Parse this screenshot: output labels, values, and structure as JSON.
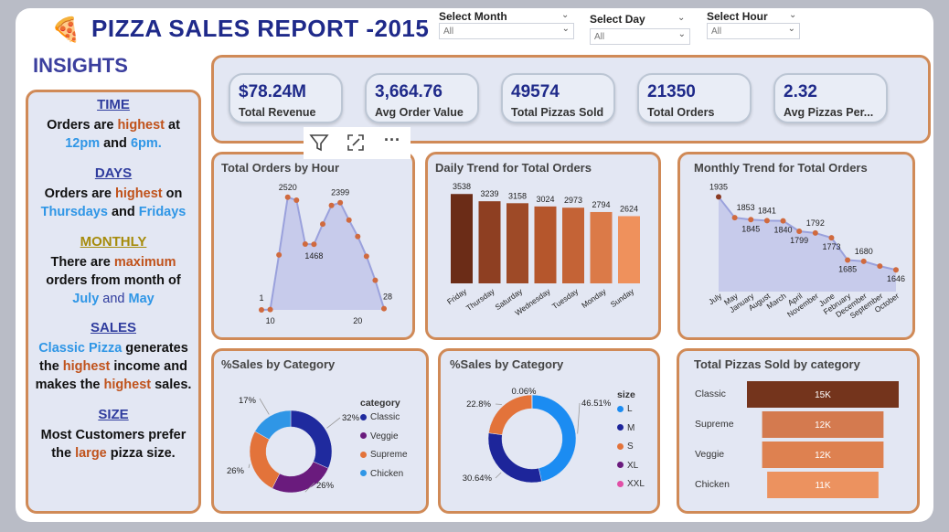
{
  "header": {
    "title": "PIZZA SALES REPORT -2015",
    "insights_title": "INSIGHTS"
  },
  "slicers": [
    {
      "label": "Select Month",
      "value": "All"
    },
    {
      "label": "Select Day",
      "value": "All"
    },
    {
      "label": "Select Hour",
      "value": "All"
    }
  ],
  "insights": {
    "time": {
      "heading": "TIME",
      "l1a": "Orders are ",
      "l1b": "highest",
      "l1c": " at",
      "l2a": "12pm",
      "l2b": " and ",
      "l2c": "6pm."
    },
    "days": {
      "heading": "DAYS ",
      "l1a": "Orders are ",
      "l1b": "highest",
      "l1c": " on",
      "l2a": "Thursdays",
      "l2b": " and ",
      "l2c": "Fridays"
    },
    "monthly": {
      "heading": "MONTHLY",
      "l1a": "There are ",
      "l1b": "maximum",
      "l2": "orders from month of",
      "l3a": "July",
      "l3b": " and ",
      "l3c": "May"
    },
    "sales": {
      "heading": "SALES",
      "l1a": "Classic Pizza",
      "l1b": " generates",
      "l2a": "the ",
      "l2b": "highest",
      "l2c": " income and",
      "l3a": "makes the ",
      "l3b": "highest",
      "l3c": " sales."
    },
    "size": {
      "heading": "SIZE",
      "l1": "Most Customers prefer",
      "l2a": "the ",
      "l2b": "large",
      "l2c": " pizza size."
    }
  },
  "kpis": [
    {
      "value": "$78.24M",
      "label": "Total Revenue"
    },
    {
      "value": "3,664.76",
      "label": "Avg Order Value"
    },
    {
      "value": "49574",
      "label": "Total Pizzas Sold"
    },
    {
      "value": "21350",
      "label": "Total Orders"
    },
    {
      "value": "2.32",
      "label": "Avg Pizzas Per..."
    }
  ],
  "chart_titles": {
    "hour": "Total Orders by Hour",
    "daily": "Daily Trend for Total Orders",
    "monthly": "Monthly Trend for Total Orders",
    "category": "%Sales by Category",
    "size": "%Sales by Category",
    "pizzas": "Total Pizzas Sold by category"
  },
  "legend_titles": {
    "category": "category",
    "size": "size"
  },
  "colors": {
    "accent": "#1f2a8a",
    "panel_border": "#d08a57",
    "panel_bg": "#e3e7f3"
  },
  "chart_data": [
    {
      "type": "area",
      "title": "Total Orders by Hour",
      "x": [
        9,
        10,
        11,
        12,
        13,
        14,
        15,
        16,
        17,
        18,
        19,
        20,
        21,
        22,
        23
      ],
      "values": [
        1,
        8,
        1231,
        2520,
        2455,
        1472,
        1468,
        1920,
        2336,
        2399,
        2009,
        1642,
        1198,
        663,
        28
      ],
      "point_labels": {
        "9": "1",
        "12": "2520",
        "15": "1468",
        "18": "2399",
        "23": "28"
      },
      "x_tick_labels": [
        "10",
        "20"
      ],
      "xlim": [
        9,
        23
      ],
      "ylim": [
        0,
        2700
      ]
    },
    {
      "type": "bar",
      "title": "Daily Trend for Total Orders",
      "categories": [
        "Friday",
        "Thursday",
        "Saturday",
        "Wednesday",
        "Tuesday",
        "Monday",
        "Sunday"
      ],
      "values": [
        3538,
        3239,
        3158,
        3024,
        2973,
        2794,
        2624
      ],
      "colors": [
        "#6b2c17",
        "#8e3f22",
        "#9e4a27",
        "#b5562c",
        "#c46336",
        "#db7a48",
        "#ef915c"
      ],
      "ylim": [
        0,
        3800
      ]
    },
    {
      "type": "area",
      "title": "Monthly Trend for Total Orders",
      "categories": [
        "July",
        "May",
        "January",
        "August",
        "March",
        "April",
        "November",
        "June",
        "February",
        "December",
        "September",
        "October"
      ],
      "values": [
        1935,
        1853,
        1845,
        1841,
        1840,
        1799,
        1792,
        1773,
        1685,
        1680,
        1661,
        1646
      ],
      "point_labels": [
        "1935",
        "1853",
        "1845",
        "1841",
        "1840",
        "1799",
        "1792",
        "1773",
        "1685",
        "1680",
        "",
        "1646"
      ],
      "ylim": [
        1560,
        1980
      ]
    },
    {
      "type": "pie",
      "title": "%Sales by Category",
      "categories": [
        "Classic",
        "Veggie",
        "Supreme",
        "Chicken"
      ],
      "values": [
        32,
        26,
        26,
        17
      ],
      "labels": [
        "32%",
        "26%",
        "26%",
        "17%"
      ],
      "colors": [
        "#1f2a9e",
        "#6a1b7d",
        "#e3733a",
        "#2f96e6"
      ]
    },
    {
      "type": "pie",
      "title": "%Sales by Category",
      "categories": [
        "L",
        "M",
        "S",
        "XL",
        "XXL"
      ],
      "values": [
        46.51,
        30.64,
        22.8,
        0.05,
        0.06
      ],
      "labels": [
        "46.51%",
        "30.64%",
        "22.8%",
        "",
        "0.06%"
      ],
      "colors": [
        "#1b8cf2",
        "#1d259a",
        "#e3733a",
        "#6a1b7d",
        "#e14fa6"
      ]
    },
    {
      "type": "bar",
      "title": "Total Pizzas Sold by category",
      "categories": [
        "Classic",
        "Supreme",
        "Veggie",
        "Chicken"
      ],
      "values": [
        15,
        12,
        12,
        11
      ],
      "labels": [
        "15K",
        "12K",
        "12K",
        "11K"
      ],
      "colors": [
        "#74341c",
        "#d47a4f",
        "#de8150",
        "#ec925f"
      ],
      "orientation": "horizontal-funnel"
    }
  ]
}
